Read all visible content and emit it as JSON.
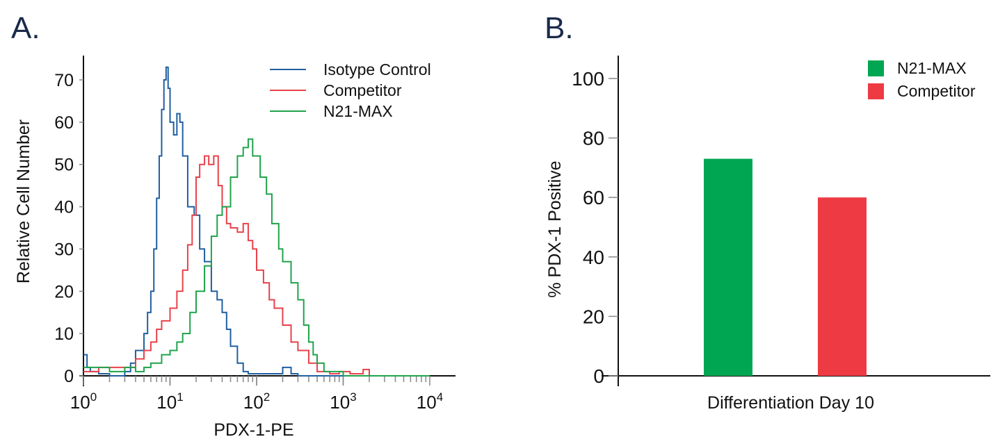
{
  "panels": {
    "a_label": "A.",
    "b_label": "B."
  },
  "chart_data": [
    {
      "type": "line",
      "step": true,
      "xscale": "log",
      "xlabel": "PDX-1-PE",
      "ylabel": "Relative Cell Number",
      "xlim": [
        1,
        10000
      ],
      "ylim": [
        0,
        75
      ],
      "x_ticks": [
        {
          "base": "10",
          "exp": "0",
          "value": 1
        },
        {
          "base": "10",
          "exp": "1",
          "value": 10
        },
        {
          "base": "10",
          "exp": "2",
          "value": 100
        },
        {
          "base": "10",
          "exp": "3",
          "value": 1000
        },
        {
          "base": "10",
          "exp": "4",
          "value": 10000
        }
      ],
      "y_ticks": [
        "0",
        "10",
        "20",
        "30",
        "40",
        "50",
        "60",
        "70"
      ],
      "legend_position": "top-right",
      "grid": false,
      "series": [
        {
          "name": "Isotype Control",
          "color": "#1f5fa0",
          "points": [
            [
              1,
              5
            ],
            [
              1.1,
              2
            ],
            [
              1.2,
              1
            ],
            [
              1.5,
              0.5
            ],
            [
              2,
              0
            ],
            [
              2.5,
              0
            ],
            [
              3,
              1
            ],
            [
              3.5,
              3
            ],
            [
              4,
              6
            ],
            [
              5,
              10
            ],
            [
              5.5,
              15
            ],
            [
              6,
              20
            ],
            [
              6.5,
              30
            ],
            [
              7,
              42
            ],
            [
              7.5,
              52
            ],
            [
              8,
              63
            ],
            [
              8.5,
              70
            ],
            [
              9,
              73
            ],
            [
              9.5,
              68
            ],
            [
              10,
              60
            ],
            [
              11,
              57
            ],
            [
              12,
              62
            ],
            [
              13,
              60
            ],
            [
              14,
              52
            ],
            [
              16,
              40
            ],
            [
              19,
              38
            ],
            [
              22,
              30
            ],
            [
              25,
              27
            ],
            [
              30,
              20
            ],
            [
              35,
              18
            ],
            [
              40,
              15
            ],
            [
              45,
              11
            ],
            [
              50,
              7
            ],
            [
              60,
              3
            ],
            [
              70,
              1
            ],
            [
              80,
              0.5
            ],
            [
              100,
              0.5
            ],
            [
              150,
              0.5
            ],
            [
              200,
              2
            ],
            [
              250,
              0.5
            ],
            [
              300,
              0
            ],
            [
              1000,
              0
            ],
            [
              10000,
              0
            ]
          ]
        },
        {
          "name": "Competitor",
          "color": "#e8414a",
          "points": [
            [
              1,
              1
            ],
            [
              1.5,
              2
            ],
            [
              3,
              2
            ],
            [
              4,
              4
            ],
            [
              5,
              6
            ],
            [
              6,
              8
            ],
            [
              7,
              11
            ],
            [
              8,
              13
            ],
            [
              10,
              16
            ],
            [
              12,
              20
            ],
            [
              14,
              25
            ],
            [
              16,
              31
            ],
            [
              18,
              38
            ],
            [
              20,
              47
            ],
            [
              22,
              50
            ],
            [
              25,
              52
            ],
            [
              28,
              50
            ],
            [
              32,
              52
            ],
            [
              36,
              45
            ],
            [
              40,
              40
            ],
            [
              45,
              36
            ],
            [
              50,
              35
            ],
            [
              60,
              34
            ],
            [
              70,
              36
            ],
            [
              80,
              32
            ],
            [
              90,
              30
            ],
            [
              100,
              25
            ],
            [
              120,
              22
            ],
            [
              140,
              18
            ],
            [
              160,
              16
            ],
            [
              200,
              12
            ],
            [
              250,
              8
            ],
            [
              300,
              6
            ],
            [
              400,
              3
            ],
            [
              500,
              1
            ],
            [
              700,
              0.5
            ],
            [
              900,
              1
            ],
            [
              1200,
              0.5
            ],
            [
              1700,
              1.5
            ],
            [
              2000,
              0
            ],
            [
              10000,
              0
            ]
          ]
        },
        {
          "name": "N21-MAX",
          "color": "#1fa34a",
          "points": [
            [
              1,
              2
            ],
            [
              1.5,
              2
            ],
            [
              2,
              1
            ],
            [
              3,
              2
            ],
            [
              4,
              1
            ],
            [
              5,
              2
            ],
            [
              6,
              3
            ],
            [
              8,
              5
            ],
            [
              10,
              6
            ],
            [
              12,
              8
            ],
            [
              14,
              10
            ],
            [
              17,
              15
            ],
            [
              20,
              20
            ],
            [
              25,
              26
            ],
            [
              30,
              33
            ],
            [
              35,
              38
            ],
            [
              40,
              40
            ],
            [
              50,
              47
            ],
            [
              60,
              52
            ],
            [
              70,
              54
            ],
            [
              80,
              56
            ],
            [
              90,
              52
            ],
            [
              110,
              47
            ],
            [
              130,
              43
            ],
            [
              150,
              36
            ],
            [
              180,
              30
            ],
            [
              200,
              27
            ],
            [
              250,
              22
            ],
            [
              300,
              18
            ],
            [
              350,
              12
            ],
            [
              400,
              8
            ],
            [
              450,
              5
            ],
            [
              500,
              3
            ],
            [
              600,
              1
            ],
            [
              1000,
              0
            ],
            [
              10000,
              0
            ]
          ]
        }
      ]
    },
    {
      "type": "bar",
      "categories": [
        "Differentiation Day 10"
      ],
      "xlabel": "Differentiation Day 10",
      "ylabel": "% PDX-1 Positive",
      "ylim": [
        0,
        100
      ],
      "y_ticks": [
        "0",
        "20",
        "40",
        "60",
        "80",
        "100"
      ],
      "legend_position": "top-right",
      "grid": false,
      "series": [
        {
          "name": "N21-MAX",
          "color": "#00a651",
          "values": [
            73
          ]
        },
        {
          "name": "Competitor",
          "color": "#ee3a43",
          "values": [
            60
          ]
        }
      ]
    }
  ]
}
